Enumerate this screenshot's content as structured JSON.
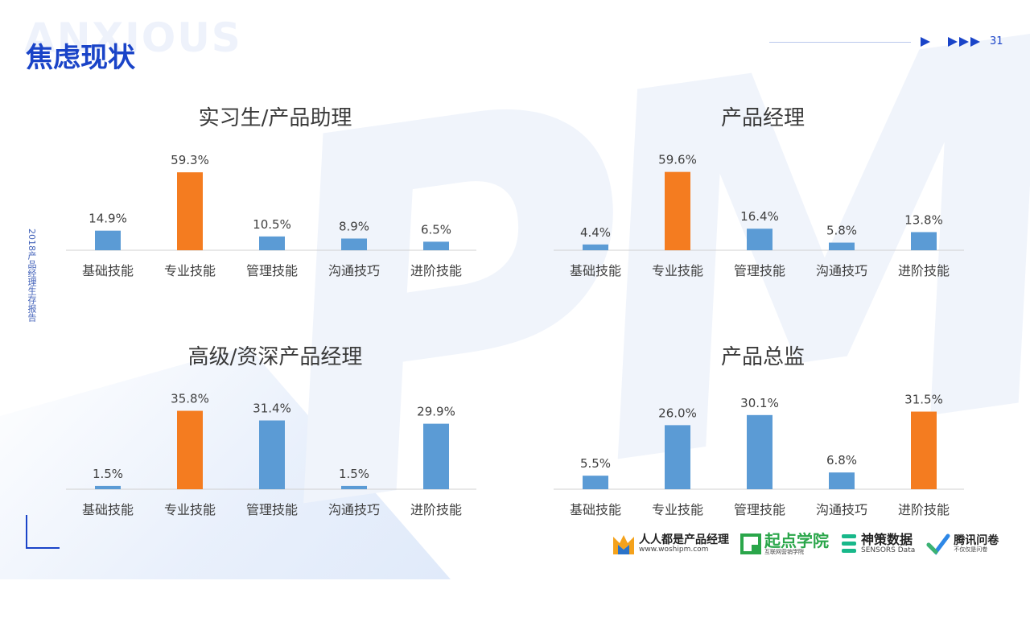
{
  "header": {
    "watermark": "ANXIOUS",
    "title": "焦虑现状",
    "page_number": "31"
  },
  "sidebar": {
    "vertical_text": "2018产品经理生存报告"
  },
  "colors": {
    "accent": "#1a44c8",
    "bar_default": "#5b9bd5",
    "bar_highlight": "#f47c20"
  },
  "chart_data": [
    {
      "type": "bar",
      "title": "实习生/产品助理",
      "categories": [
        "基础技能",
        "专业技能",
        "管理技能",
        "沟通技巧",
        "进阶技能"
      ],
      "values": [
        14.9,
        59.3,
        10.5,
        8.9,
        6.5
      ],
      "labels": [
        "14.9%",
        "59.3%",
        "10.5%",
        "8.9%",
        "6.5%"
      ],
      "highlight_index": 1,
      "ylim": [
        0,
        60
      ]
    },
    {
      "type": "bar",
      "title": "产品经理",
      "categories": [
        "基础技能",
        "专业技能",
        "管理技能",
        "沟通技巧",
        "进阶技能"
      ],
      "values": [
        4.4,
        59.6,
        16.4,
        5.8,
        13.8
      ],
      "labels": [
        "4.4%",
        "59.6%",
        "16.4%",
        "5.8%",
        "13.8%"
      ],
      "highlight_index": 1,
      "ylim": [
        0,
        60
      ]
    },
    {
      "type": "bar",
      "title": "高级/资深产品经理",
      "categories": [
        "基础技能",
        "专业技能",
        "管理技能",
        "沟通技巧",
        "进阶技能"
      ],
      "values": [
        1.5,
        35.8,
        31.4,
        1.5,
        29.9
      ],
      "labels": [
        "1.5%",
        "35.8%",
        "31.4%",
        "1.5%",
        "29.9%"
      ],
      "highlight_index": 1,
      "ylim": [
        0,
        36
      ]
    },
    {
      "type": "bar",
      "title": "产品总监",
      "categories": [
        "基础技能",
        "专业技能",
        "管理技能",
        "沟通技巧",
        "进阶技能"
      ],
      "values": [
        5.5,
        26.0,
        30.1,
        6.8,
        31.5
      ],
      "labels": [
        "5.5%",
        "26.0%",
        "30.1%",
        "6.8%",
        "31.5%"
      ],
      "highlight_index": 4,
      "ylim": [
        0,
        32
      ]
    }
  ],
  "footer": {
    "logos": [
      {
        "name": "人人都是产品经理",
        "sub": "www.woshipm.com",
        "icon": "m-logo-icon"
      },
      {
        "name": "起点学院",
        "sub": "互联网营销学院",
        "icon": "q-logo-icon"
      },
      {
        "name": "神策数据",
        "sub": "SENSORS Data",
        "icon": "s-logo-icon"
      },
      {
        "name": "腾讯问卷",
        "sub": "不仅仅是问卷",
        "icon": "check-logo-icon"
      }
    ]
  }
}
